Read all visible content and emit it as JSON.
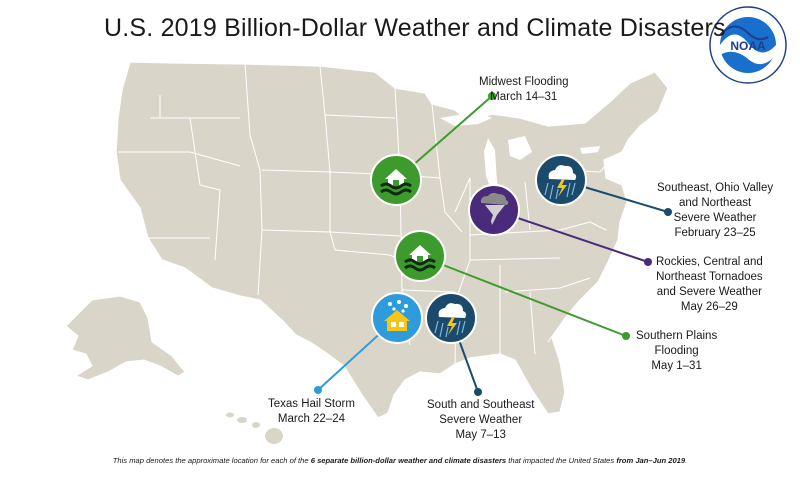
{
  "title": "U.S. 2019 Billion-Dollar Weather and Climate Disasters",
  "logo": {
    "text": "NOAA",
    "name": "noaa-logo"
  },
  "colors": {
    "land": "#d9d6c9",
    "border": "#ffffff",
    "green": "#3d9b2d",
    "purple": "#4a2a7a",
    "navy": "#1c4a6b",
    "lightblue": "#2e9bdc"
  },
  "events": [
    {
      "id": "midwest-flooding",
      "lines": [
        "Midwest Flooding",
        "March 14–31"
      ],
      "icon": "flood-house-icon",
      "color": "#3d9b2d"
    },
    {
      "id": "southeast-ohio-valley",
      "lines": [
        "Southeast, Ohio Valley",
        "and Northeast",
        "Severe Weather",
        "February 23–25"
      ],
      "icon": "storm-cloud-lightning-icon",
      "color": "#1c4a6b"
    },
    {
      "id": "rockies-tornadoes",
      "lines": [
        "Rockies, Central and",
        "Northeast Tornadoes",
        "and Severe Weather",
        "May 26–29"
      ],
      "icon": "tornado-icon",
      "color": "#4a2a7a"
    },
    {
      "id": "southern-plains-flooding",
      "lines": [
        "Southern Plains",
        "Flooding",
        "May 1–31"
      ],
      "icon": "flood-house-icon",
      "color": "#3d9b2d"
    },
    {
      "id": "texas-hail-storm",
      "lines": [
        "Texas Hail Storm",
        "March 22–24"
      ],
      "icon": "hail-house-icon",
      "color": "#2e9bdc"
    },
    {
      "id": "south-southeast-severe",
      "lines": [
        "South and Southeast",
        "Severe Weather",
        "May 7–13"
      ],
      "icon": "storm-cloud-lightning-icon",
      "color": "#1c4a6b"
    }
  ],
  "footnote": {
    "part1": "This map denotes the approximate location for each of the ",
    "bold1": "6 separate billion-dollar weather and climate disasters",
    "part2": " that impacted the United States ",
    "bold2": "from Jan–Jun 2019",
    "part3": "."
  }
}
